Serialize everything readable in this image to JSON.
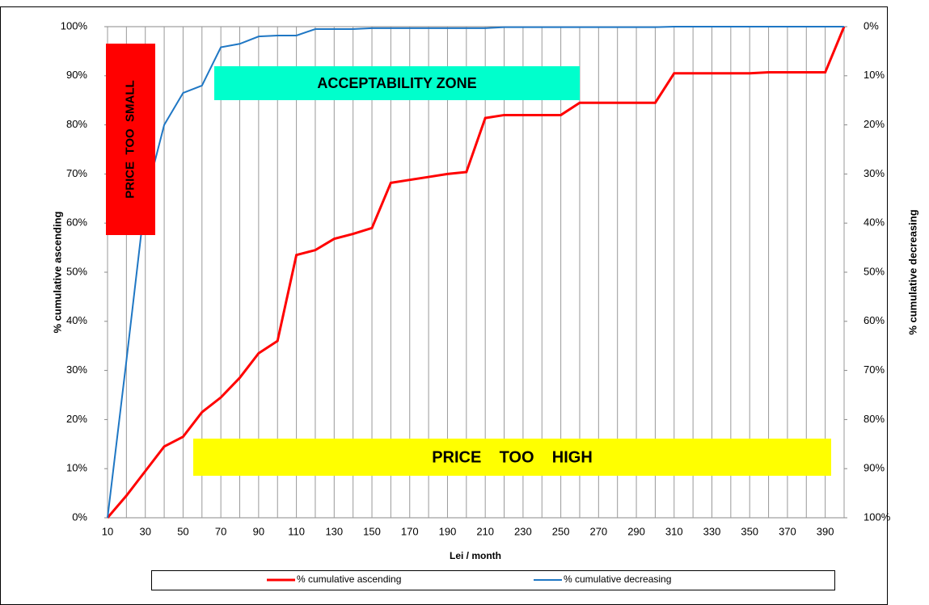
{
  "chart_data": {
    "type": "line",
    "x_label": "Lei / month",
    "y_label": "% cumulative ascending",
    "y2_label": "% cumulative decreasing",
    "x": [
      10,
      20,
      30,
      40,
      50,
      60,
      70,
      80,
      90,
      100,
      110,
      120,
      130,
      140,
      150,
      160,
      170,
      180,
      190,
      200,
      210,
      220,
      230,
      240,
      250,
      260,
      270,
      280,
      290,
      300,
      310,
      320,
      330,
      340,
      350,
      360,
      370,
      380,
      390,
      400
    ],
    "xlim": [
      10,
      400
    ],
    "xticks": [
      10,
      30,
      50,
      70,
      90,
      110,
      130,
      150,
      170,
      190,
      210,
      230,
      250,
      270,
      290,
      310,
      330,
      350,
      370,
      390
    ],
    "xminor_ticks": [
      20,
      40,
      60,
      80,
      100,
      120,
      140,
      160,
      180,
      200,
      220,
      240,
      260,
      280,
      300,
      320,
      340,
      360,
      380,
      400
    ],
    "grid": "x",
    "ylim": [
      0,
      100
    ],
    "yticks": [
      {
        "value": 0,
        "label": "0%"
      },
      {
        "value": 10,
        "label": "10%"
      },
      {
        "value": 20,
        "label": "20%"
      },
      {
        "value": 30,
        "label": "30%"
      },
      {
        "value": 40,
        "label": "40%"
      },
      {
        "value": 50,
        "label": "50%"
      },
      {
        "value": 60,
        "label": "60%"
      },
      {
        "value": 70,
        "label": "70%"
      },
      {
        "value": 80,
        "label": "80%"
      },
      {
        "value": 90,
        "label": "90%"
      },
      {
        "value": 100,
        "label": "100%"
      }
    ],
    "y2lim": [
      100,
      0
    ],
    "y2ticks": [
      {
        "value": 0,
        "label": "0%"
      },
      {
        "value": 10,
        "label": "10%"
      },
      {
        "value": 20,
        "label": "20%"
      },
      {
        "value": 30,
        "label": "30%"
      },
      {
        "value": 40,
        "label": "40%"
      },
      {
        "value": 50,
        "label": "50%"
      },
      {
        "value": 60,
        "label": "60%"
      },
      {
        "value": 70,
        "label": "70%"
      },
      {
        "value": 80,
        "label": "80%"
      },
      {
        "value": 90,
        "label": "90%"
      },
      {
        "value": 100,
        "label": "100%"
      }
    ],
    "series": [
      {
        "name": "% cumulative ascending",
        "color": "#ff0000",
        "axis": "y",
        "values": [
          0,
          4.5,
          9.5,
          14.5,
          16.5,
          21.5,
          24.5,
          28.5,
          33.5,
          36,
          53.5,
          54.5,
          56.8,
          57.8,
          59,
          68.2,
          68.8,
          69.4,
          70,
          70.4,
          81.4,
          82,
          82,
          82,
          82,
          84.5,
          84.5,
          84.5,
          84.5,
          84.5,
          90.5,
          90.5,
          90.5,
          90.5,
          90.5,
          90.7,
          90.7,
          90.7,
          90.7,
          100
        ]
      },
      {
        "name": "% cumulative decreasing",
        "color": "#1f77c4",
        "axis": "y2",
        "values": [
          100,
          68,
          35,
          20,
          13.5,
          12,
          4.2,
          3.5,
          2,
          1.8,
          1.8,
          0.5,
          0.5,
          0.5,
          0.3,
          0.3,
          0.3,
          0.3,
          0.3,
          0.3,
          0.3,
          0.1,
          0.1,
          0.1,
          0.1,
          0.1,
          0.1,
          0.1,
          0.1,
          0.1,
          0,
          0,
          0,
          0,
          0,
          0,
          0,
          0,
          0,
          0
        ]
      }
    ],
    "annotations": [
      {
        "text": "PRICE  TOO  SMALL",
        "color": "#ff0000"
      },
      {
        "text": "ACCEPTABILITY ZONE",
        "color": "#00ffcc"
      },
      {
        "text": "PRICE    TOO    HIGH",
        "color": "#ffff00"
      }
    ]
  }
}
